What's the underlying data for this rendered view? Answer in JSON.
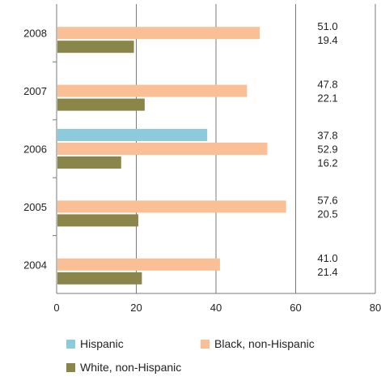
{
  "chart_data": {
    "type": "bar",
    "orientation": "horizontal",
    "categories": [
      "2008",
      "2007",
      "2006",
      "2005",
      "2004"
    ],
    "series": [
      {
        "name": "Hispanic",
        "color": "#8ccbdc",
        "values": [
          null,
          null,
          37.8,
          null,
          null
        ],
        "labels": [
          "",
          "",
          "37.8",
          "",
          ""
        ]
      },
      {
        "name": "Black, non-Hispanic",
        "color": "#fbbf95",
        "values": [
          51.0,
          47.8,
          52.9,
          57.6,
          41.0
        ],
        "labels": [
          "51.0",
          "47.8",
          "52.9",
          "57.6",
          "41.0"
        ]
      },
      {
        "name": "White, non-Hispanic",
        "color": "#8a8548",
        "values": [
          19.4,
          22.1,
          16.2,
          20.5,
          21.4
        ],
        "labels": [
          "19.4",
          "22.1",
          "16.2",
          "20.5",
          "21.4"
        ]
      }
    ],
    "xlim": [
      0,
      80
    ],
    "xticks": [
      "0",
      "20",
      "40",
      "60",
      "80"
    ],
    "grid": "vertical",
    "legend_position": "bottom"
  }
}
